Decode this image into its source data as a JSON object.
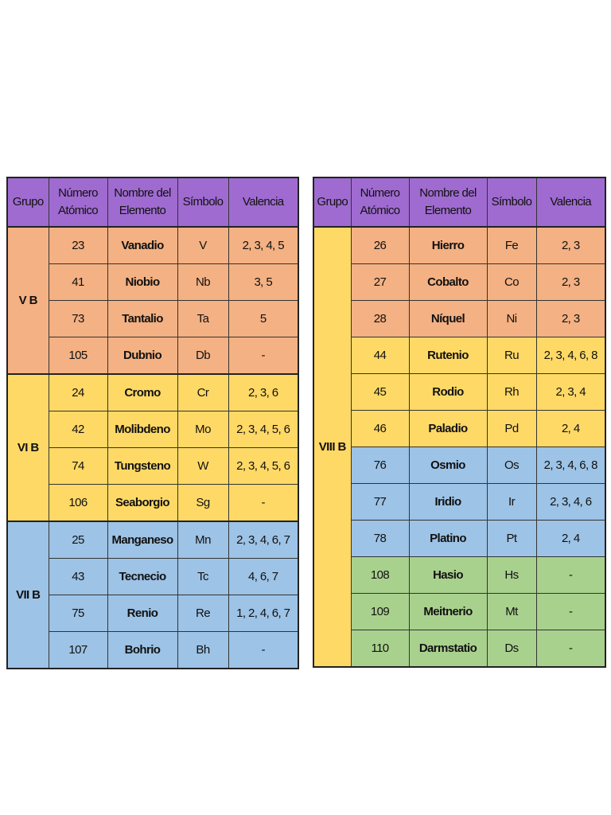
{
  "tables": [
    {
      "headers": [
        "Grupo",
        "Número Atómico",
        "Nombre del Elemento",
        "Símbolo",
        "Valencia"
      ],
      "header_color": "#9f6bd0",
      "groups": [
        {
          "label": "V B",
          "color": "#f4b183",
          "rows": [
            {
              "cells": [
                "23",
                "Vanadio",
                "V",
                "2, 3, 4, 5"
              ],
              "color": "#f4b183"
            },
            {
              "cells": [
                "41",
                "Niobio",
                "Nb",
                "3, 5"
              ],
              "color": "#f4b183"
            },
            {
              "cells": [
                "73",
                "Tantalio",
                "Ta",
                "5"
              ],
              "color": "#f4b183"
            },
            {
              "cells": [
                "105",
                "Dubnio",
                "Db",
                "-"
              ],
              "color": "#f4b183"
            }
          ]
        },
        {
          "label": "VI B",
          "color": "#ffd966",
          "rows": [
            {
              "cells": [
                "24",
                "Cromo",
                "Cr",
                "2, 3, 6"
              ],
              "color": "#ffd966"
            },
            {
              "cells": [
                "42",
                "Molibdeno",
                "Mo",
                "2, 3, 4, 5, 6"
              ],
              "color": "#ffd966"
            },
            {
              "cells": [
                "74",
                "Tungsteno",
                "W",
                "2, 3, 4, 5, 6"
              ],
              "color": "#ffd966"
            },
            {
              "cells": [
                "106",
                "Seaborgio",
                "Sg",
                "-"
              ],
              "color": "#ffd966"
            }
          ]
        },
        {
          "label": "VII B",
          "color": "#9dc3e6",
          "rows": [
            {
              "cells": [
                "25",
                "Manganeso",
                "Mn",
                "2, 3, 4, 6, 7"
              ],
              "color": "#9dc3e6"
            },
            {
              "cells": [
                "43",
                "Tecnecio",
                "Tc",
                "4, 6, 7"
              ],
              "color": "#9dc3e6"
            },
            {
              "cells": [
                "75",
                "Renio",
                "Re",
                "1, 2, 4, 6, 7"
              ],
              "color": "#9dc3e6"
            },
            {
              "cells": [
                "107",
                "Bohrio",
                "Bh",
                "-"
              ],
              "color": "#9dc3e6"
            }
          ]
        }
      ]
    },
    {
      "headers": [
        "Grupo",
        "Número Atómico",
        "Nombre del Elemento",
        "Símbolo",
        "Valencia"
      ],
      "header_color": "#9f6bd0",
      "groups": [
        {
          "label": "VIII B",
          "color": "#ffd966",
          "rows": [
            {
              "cells": [
                "26",
                "Hierro",
                "Fe",
                "2, 3"
              ],
              "color": "#f4b183"
            },
            {
              "cells": [
                "27",
                "Cobalto",
                "Co",
                "2, 3"
              ],
              "color": "#f4b183"
            },
            {
              "cells": [
                "28",
                "Níquel",
                "Ni",
                "2, 3"
              ],
              "color": "#f4b183"
            },
            {
              "cells": [
                "44",
                "Rutenio",
                "Ru",
                "2, 3, 4, 6, 8"
              ],
              "color": "#ffd966"
            },
            {
              "cells": [
                "45",
                "Rodio",
                "Rh",
                "2, 3, 4"
              ],
              "color": "#ffd966"
            },
            {
              "cells": [
                "46",
                "Paladio",
                "Pd",
                "2, 4"
              ],
              "color": "#ffd966"
            },
            {
              "cells": [
                "76",
                "Osmio",
                "Os",
                "2, 3, 4, 6, 8"
              ],
              "color": "#9dc3e6"
            },
            {
              "cells": [
                "77",
                "Iridio",
                "Ir",
                "2, 3, 4, 6"
              ],
              "color": "#9dc3e6"
            },
            {
              "cells": [
                "78",
                "Platino",
                "Pt",
                "2, 4"
              ],
              "color": "#9dc3e6"
            },
            {
              "cells": [
                "108",
                "Hasio",
                "Hs",
                "-"
              ],
              "color": "#a9d18e"
            },
            {
              "cells": [
                "109",
                "Meitnerio",
                "Mt",
                "-"
              ],
              "color": "#a9d18e"
            },
            {
              "cells": [
                "110",
                "Darmstatio",
                "Ds",
                "-"
              ],
              "color": "#a9d18e"
            }
          ]
        }
      ]
    }
  ]
}
